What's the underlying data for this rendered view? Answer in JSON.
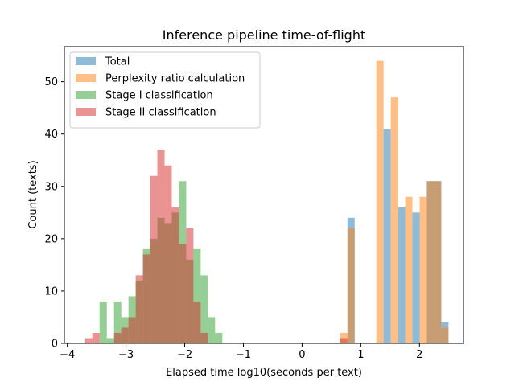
{
  "chart_data": {
    "type": "histogram",
    "title": "Inference pipeline time-of-flight",
    "xlabel": "Elapsed time log10(seconds per text)",
    "ylabel": "Count (texts)",
    "xlim": [
      -4.05,
      2.75
    ],
    "ylim": [
      0,
      56.7
    ],
    "xticks": [
      -4,
      -3,
      -2,
      -1,
      0,
      1,
      2
    ],
    "xtick_labels": [
      "−4",
      "−3",
      "−2",
      "−1",
      "0",
      "1",
      "2"
    ],
    "yticks": [
      0,
      10,
      20,
      30,
      40,
      50
    ],
    "ytick_labels": [
      "0",
      "10",
      "20",
      "30",
      "40",
      "50"
    ],
    "grid": false,
    "legend_position": "upper left",
    "overlay_alpha": 0.5,
    "series": [
      {
        "name": "Total",
        "color": "#1f77b4",
        "bin_width": 0.123,
        "bins": [
          {
            "x0": 0.773,
            "count": 24
          },
          {
            "x0": 1.388,
            "count": 41
          },
          {
            "x0": 1.634,
            "count": 26
          },
          {
            "x0": 1.88,
            "count": 25
          },
          {
            "x0": 2.126,
            "count": 31
          },
          {
            "x0": 2.249,
            "count": 31
          },
          {
            "x0": 2.372,
            "count": 4
          }
        ]
      },
      {
        "name": "Perplexity ratio calculation",
        "color": "#ff7f0e",
        "bin_width": 0.123,
        "bins": [
          {
            "x0": 0.65,
            "count": 2
          },
          {
            "x0": 0.773,
            "count": 22
          },
          {
            "x0": 1.265,
            "count": 54
          },
          {
            "x0": 1.511,
            "count": 47
          },
          {
            "x0": 1.757,
            "count": 28
          },
          {
            "x0": 2.003,
            "count": 28
          },
          {
            "x0": 2.126,
            "count": 31
          },
          {
            "x0": 2.249,
            "count": 31
          },
          {
            "x0": 2.372,
            "count": 3
          }
        ]
      },
      {
        "name": "Stage I classification",
        "color": "#2ca02c",
        "bin_width": 0.123,
        "bins": [
          {
            "x0": -3.45,
            "count": 8
          },
          {
            "x0": -3.327,
            "count": 1
          },
          {
            "x0": -3.204,
            "count": 8
          },
          {
            "x0": -3.081,
            "count": 5
          },
          {
            "x0": -2.958,
            "count": 9
          },
          {
            "x0": -2.835,
            "count": 12
          },
          {
            "x0": -2.712,
            "count": 18
          },
          {
            "x0": -2.589,
            "count": 20
          },
          {
            "x0": -2.466,
            "count": 24
          },
          {
            "x0": -2.343,
            "count": 23
          },
          {
            "x0": -2.22,
            "count": 25
          },
          {
            "x0": -2.097,
            "count": 31
          },
          {
            "x0": -1.974,
            "count": 16
          },
          {
            "x0": -1.851,
            "count": 18
          },
          {
            "x0": -1.728,
            "count": 13
          },
          {
            "x0": -1.605,
            "count": 5
          },
          {
            "x0": -1.482,
            "count": 2
          }
        ]
      },
      {
        "name": "Stage II classification",
        "color": "#d62728",
        "bin_width": 0.123,
        "bins": [
          {
            "x0": -3.696,
            "count": 1
          },
          {
            "x0": -3.573,
            "count": 2
          },
          {
            "x0": -3.204,
            "count": 2
          },
          {
            "x0": -3.081,
            "count": 3
          },
          {
            "x0": -2.958,
            "count": 5
          },
          {
            "x0": -2.835,
            "count": 13
          },
          {
            "x0": -2.712,
            "count": 17
          },
          {
            "x0": -2.589,
            "count": 32
          },
          {
            "x0": -2.466,
            "count": 37
          },
          {
            "x0": -2.343,
            "count": 34
          },
          {
            "x0": -2.22,
            "count": 26
          },
          {
            "x0": -2.097,
            "count": 19
          },
          {
            "x0": -1.974,
            "count": 22
          },
          {
            "x0": -1.851,
            "count": 8
          },
          {
            "x0": -1.728,
            "count": 2
          },
          {
            "x0": 0.65,
            "count": 1
          }
        ]
      }
    ]
  }
}
